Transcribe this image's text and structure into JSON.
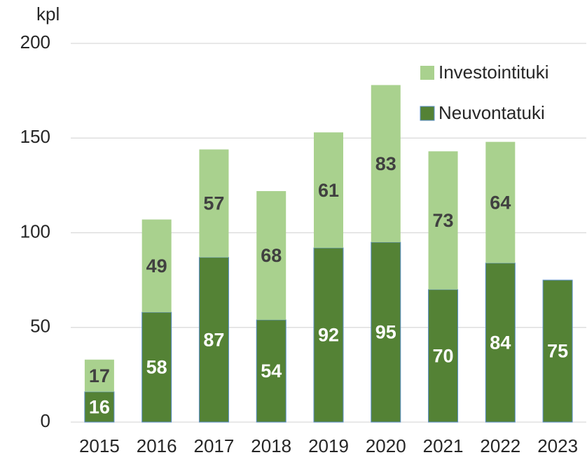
{
  "chart_data": {
    "type": "bar",
    "stacked": true,
    "y_label": "kpl",
    "categories": [
      "2015",
      "2016",
      "2017",
      "2018",
      "2019",
      "2020",
      "2021",
      "2022",
      "2023"
    ],
    "series": [
      {
        "name": "Neuvontatuki",
        "color": "#548235",
        "label_color": "#ffffff",
        "values": [
          16,
          58,
          87,
          54,
          92,
          95,
          70,
          84,
          75
        ]
      },
      {
        "name": "Investointituki",
        "color": "#a9d18e",
        "label_color": "#404040",
        "values": [
          17,
          49,
          57,
          68,
          61,
          83,
          73,
          64,
          null
        ]
      }
    ],
    "ylim": [
      0,
      200
    ],
    "yticks": [
      0,
      50,
      100,
      150,
      200
    ],
    "grid": true,
    "legend": "upper right"
  }
}
